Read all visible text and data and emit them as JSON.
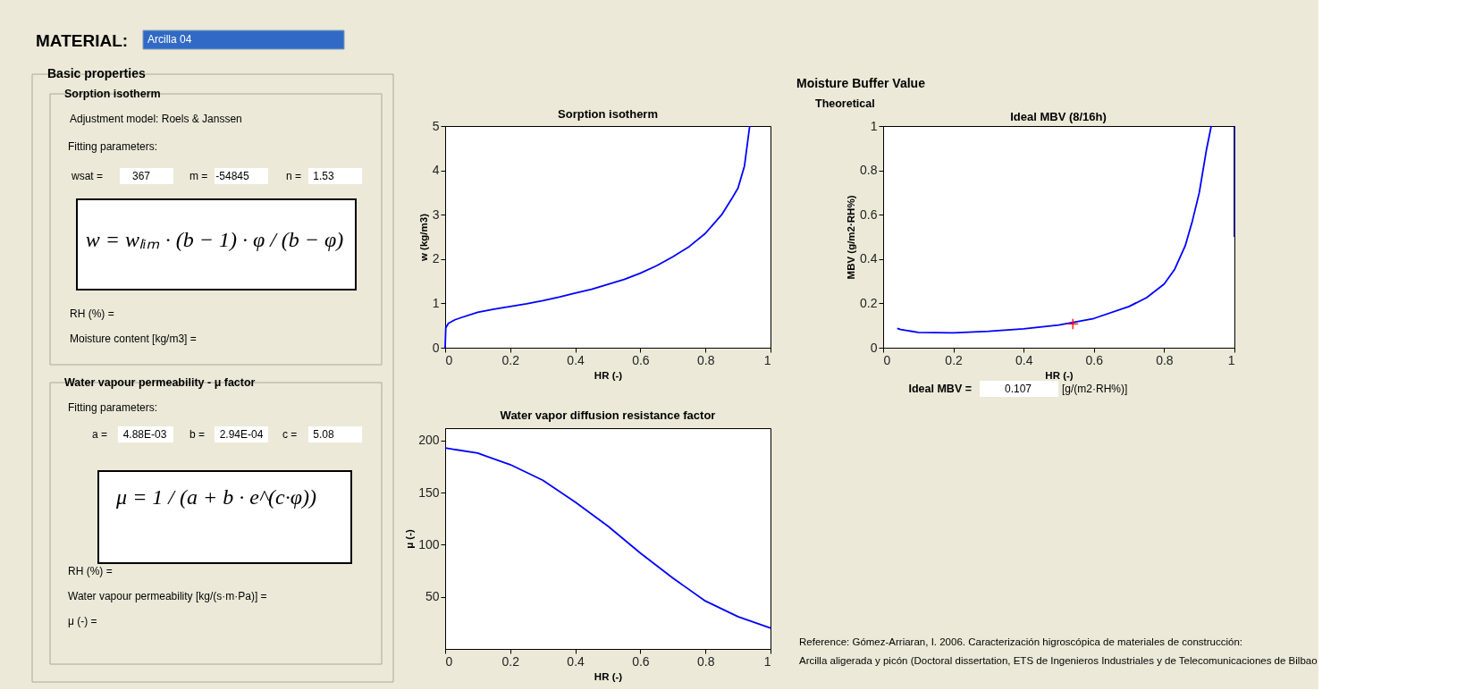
{
  "chart_data": [
    {
      "type": "other",
      "annotations": [
        "MATERIAL:",
        "Arcilla 04",
        "Basic properties",
        "Sorption isotherm",
        "Adjustment model:  Roels & Janssen",
        "Fitting parameters:",
        "wsat =",
        "367",
        "m =",
        "-54845",
        "n =",
        "1.53",
        "w = wₗᵢₘ · (b − 1) · φ / (b − φ)",
        "RH (%) =",
        "Moisture content [kg/m3] =",
        "Water vapour permeability - μ factor",
        "Fitting parameters:",
        "a =",
        "4.88E-03",
        "b =",
        "2.94E-04",
        "c =",
        "5.08",
        "μ = 1 / (a + b · e^(c·φ))",
        "RH (%) =",
        "Water vapour permeability [kg/(s·m·Pa)] =",
        "μ (-) ="
      ]
    },
    {
      "type": "line",
      "title": "Sorption isotherm",
      "xlabel": "HR (-)",
      "ylabel": "w (kg/m3)",
      "xlim": [
        0,
        1
      ],
      "ylim": [
        0,
        5
      ],
      "xticks": [
        0,
        0.2,
        0.4,
        0.6,
        0.8,
        1
      ],
      "yticks": [
        0,
        1,
        2,
        3,
        4,
        5
      ],
      "grid": false,
      "series": [
        {
          "color": "#0000ff",
          "x": [
            0,
            0.002,
            0.01,
            0.03,
            0.05,
            0.1,
            0.15,
            0.2,
            0.25,
            0.3,
            0.35,
            0.4,
            0.45,
            0.5,
            0.55,
            0.6,
            0.65,
            0.7,
            0.75,
            0.8,
            0.85,
            0.88,
            0.9,
            0.92,
            0.936
          ],
          "values": [
            0,
            0.45,
            0.55,
            0.63,
            0.68,
            0.8,
            0.87,
            0.93,
            0.99,
            1.06,
            1.14,
            1.23,
            1.32,
            1.43,
            1.54,
            1.68,
            1.85,
            2.05,
            2.28,
            2.58,
            3.0,
            3.35,
            3.6,
            4.1,
            5.0
          ]
        }
      ]
    },
    {
      "type": "line",
      "title": "Water vapor diffusion resistance factor",
      "xlabel": "HR (-)",
      "ylabel": "μ (-)",
      "xlim": [
        0,
        1
      ],
      "ylim": [
        0,
        212
      ],
      "xticks": [
        0,
        0.2,
        0.4,
        0.6,
        0.8,
        1
      ],
      "yticks": [
        50,
        100,
        150,
        200
      ],
      "grid": false,
      "series": [
        {
          "color": "#0000ff",
          "x": [
            0,
            0.1,
            0.2,
            0.3,
            0.4,
            0.5,
            0.6,
            0.7,
            0.8,
            0.9,
            1
          ],
          "values": [
            193,
            188,
            177,
            162,
            141,
            118,
            92,
            68,
            46,
            31,
            20
          ]
        }
      ]
    },
    {
      "type": "line",
      "title": "Ideal MBV (8/16h)",
      "xlabel": "HR (-)",
      "ylabel": "MBV (g/m2·RH%)",
      "xlim": [
        0,
        1
      ],
      "ylim": [
        0,
        1
      ],
      "xticks": [
        0,
        0.2,
        0.4,
        0.6,
        0.8,
        1
      ],
      "yticks": [
        0,
        0.2,
        0.4,
        0.6,
        0.8,
        1
      ],
      "grid": false,
      "annotations": [
        "Moisture Buffer Value",
        "Theoretical",
        "Ideal MBV =",
        "0.107",
        "[g/(m2·RH%)]",
        "Reference: Gómez-Arriaran, I. 2006. Caracterización higroscópica de materiales de construcción:",
        "Arcilla aligerada y picón (Doctoral dissertation, ETS de Ingenieros Industriales y de Telecomunicaciones de Bilbao"
      ],
      "series": [
        {
          "color": "#0000ff",
          "x": [
            0.04,
            0.05,
            0.1,
            0.2,
            0.3,
            0.4,
            0.5,
            0.6,
            0.7,
            0.75,
            0.8,
            0.83,
            0.86,
            0.88,
            0.9,
            0.92,
            0.934
          ],
          "values": [
            0.087,
            0.082,
            0.069,
            0.067,
            0.074,
            0.085,
            0.102,
            0.132,
            0.186,
            0.226,
            0.287,
            0.354,
            0.46,
            0.57,
            0.7,
            0.89,
            1.0
          ]
        },
        {
          "color": "#000080",
          "x": [
            1,
            1
          ],
          "values": [
            0.5,
            1
          ]
        },
        {
          "type": "scatter",
          "marker": "cross",
          "color": "#ff0000",
          "x": [
            0.54
          ],
          "values": [
            0.107
          ]
        }
      ]
    }
  ]
}
